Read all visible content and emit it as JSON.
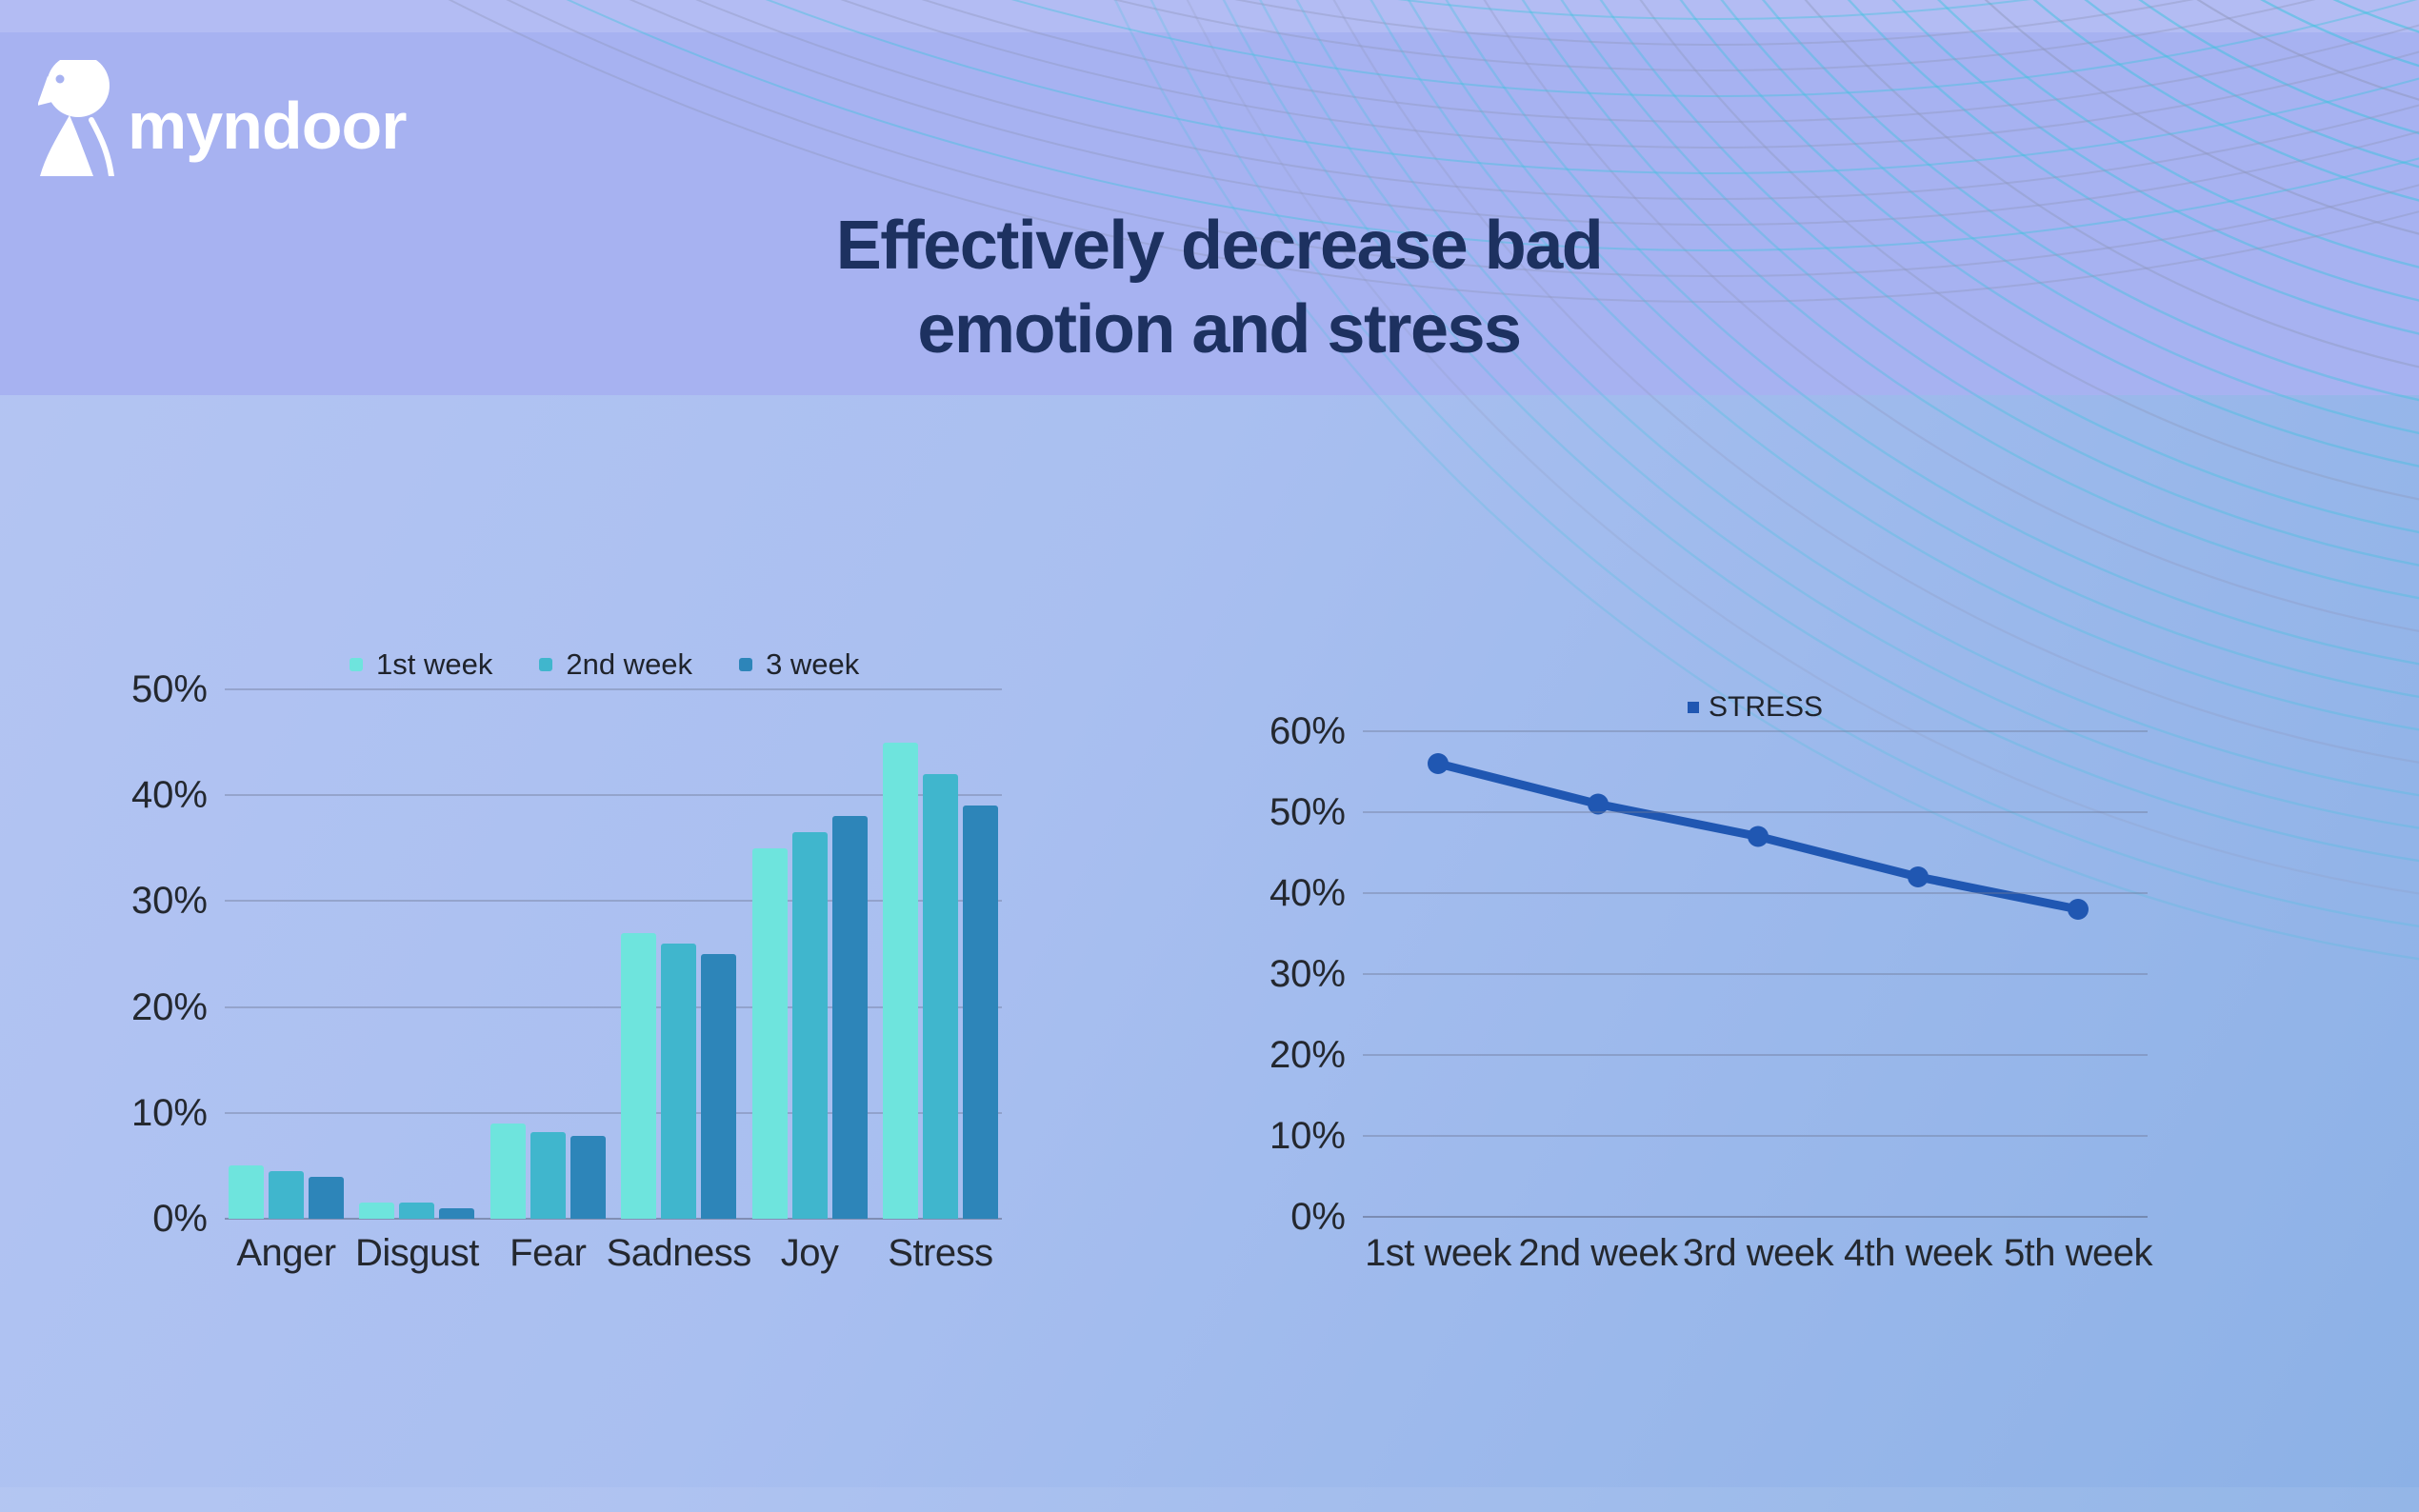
{
  "colors": {
    "header_bg": "#a7b2f1",
    "bg_start": "#b5c5f3",
    "bg_mid": "#a9bff0",
    "bg_end": "#8cb1e6",
    "title": "#1d3160",
    "logo_white": "#ffffff",
    "arc_cyan": "#35c4de",
    "arc_gray": "#8d96ba",
    "axis_text": "#24282f"
  },
  "header": {
    "logo_text": "myndoor"
  },
  "title": {
    "line1": "Effectively decrease bad",
    "line2": "emotion and stress"
  },
  "chart_data": [
    {
      "type": "bar",
      "title": "",
      "xlabel": "",
      "ylabel": "",
      "categories": [
        "Anger",
        "Disgust",
        "Fear",
        "Sadness",
        "Joy",
        "Stress"
      ],
      "series": [
        {
          "name": "1st week",
          "color": "#6ee4dd",
          "values": [
            5,
            1.5,
            9,
            27,
            35,
            45
          ]
        },
        {
          "name": "2nd week",
          "color": "#40b6cd",
          "values": [
            4.5,
            1.5,
            8.2,
            26,
            36.5,
            42
          ]
        },
        {
          "name": "3 week",
          "color": "#2d85b9",
          "values": [
            4,
            1,
            7.8,
            25,
            38,
            39
          ]
        }
      ],
      "ylim": [
        0,
        50
      ],
      "yticks": [
        "0%",
        "10%",
        "20%",
        "30%",
        "40%",
        "50%"
      ],
      "grid": true,
      "legend_position": "top"
    },
    {
      "type": "line",
      "title": "",
      "xlabel": "",
      "ylabel": "",
      "categories": [
        "1st week",
        "2nd week",
        "3rd week",
        "4th week",
        "5th week"
      ],
      "series": [
        {
          "name": "STRESS",
          "color": "#2057b2",
          "values": [
            56,
            51,
            47,
            42,
            38
          ]
        }
      ],
      "ylim": [
        0,
        60
      ],
      "yticks": [
        "0%",
        "10%",
        "20%",
        "30%",
        "40%",
        "50%",
        "60%"
      ],
      "grid": true,
      "legend_position": "top"
    }
  ]
}
